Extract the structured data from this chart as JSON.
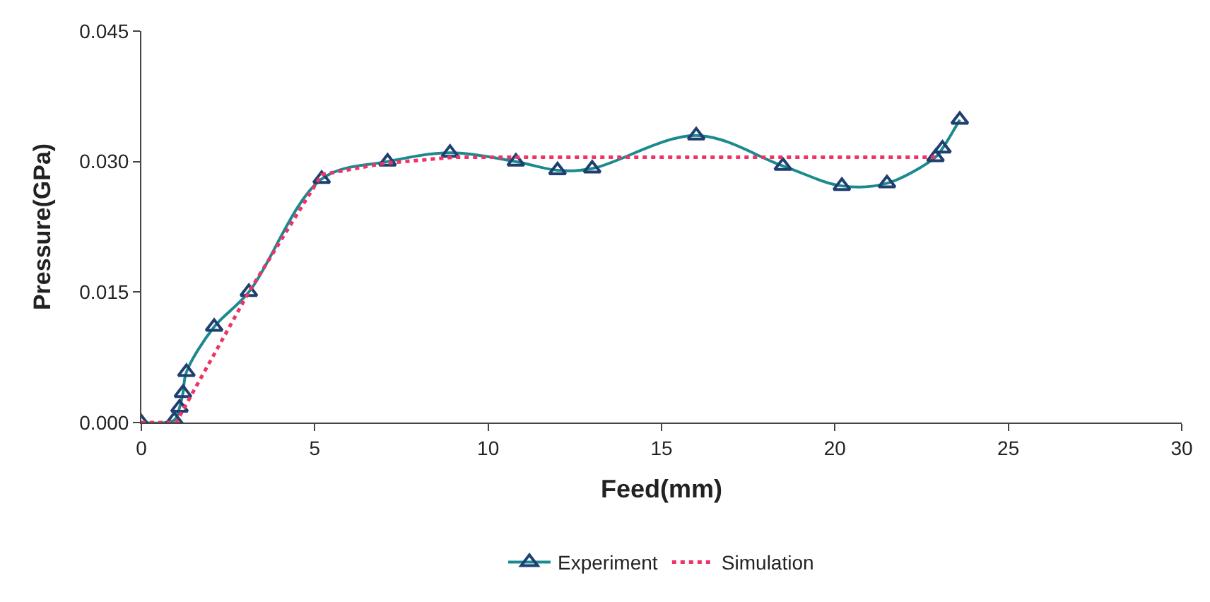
{
  "chart_data": {
    "type": "line",
    "xlabel": "Feed(mm)",
    "ylabel": "Pressure(GPa)",
    "xlim": [
      0,
      30
    ],
    "xticks": [
      0,
      5,
      10,
      15,
      20,
      25,
      30
    ],
    "ylim": [
      0,
      0.045
    ],
    "yticks": [
      {
        "value": 0,
        "label": "0.000"
      },
      {
        "value": 0.015,
        "label": "0.015"
      },
      {
        "value": 0.03,
        "label": "0.030"
      },
      {
        "value": 0.045,
        "label": "0.045"
      }
    ],
    "legend": "bottom",
    "series": [
      {
        "name": "Experiment",
        "color": "#1b8a8f",
        "marker": "triangle",
        "line_style": "solid",
        "x": [
          0,
          0.95,
          1.1,
          1.2,
          1.3,
          2.1,
          3.1,
          5.2,
          7.1,
          8.9,
          10.8,
          12.0,
          13.0,
          16.0,
          18.5,
          20.2,
          21.5,
          22.9,
          23.1,
          23.6
        ],
        "values": [
          0,
          0.0003,
          0.0017,
          0.0034,
          0.0058,
          0.011,
          0.015,
          0.028,
          0.03,
          0.031,
          0.03,
          0.029,
          0.0292,
          0.033,
          0.0295,
          0.0272,
          0.0275,
          0.0305,
          0.0315,
          0.0348
        ]
      },
      {
        "name": "Simulation",
        "color": "#ee3366",
        "marker": "none",
        "line_style": "dotted",
        "x": [
          0,
          1.0,
          3.1,
          5.2,
          7.0,
          9.0,
          23.0
        ],
        "values": [
          0,
          0,
          0.015,
          0.0285,
          0.0298,
          0.0305,
          0.0305
        ]
      }
    ]
  }
}
